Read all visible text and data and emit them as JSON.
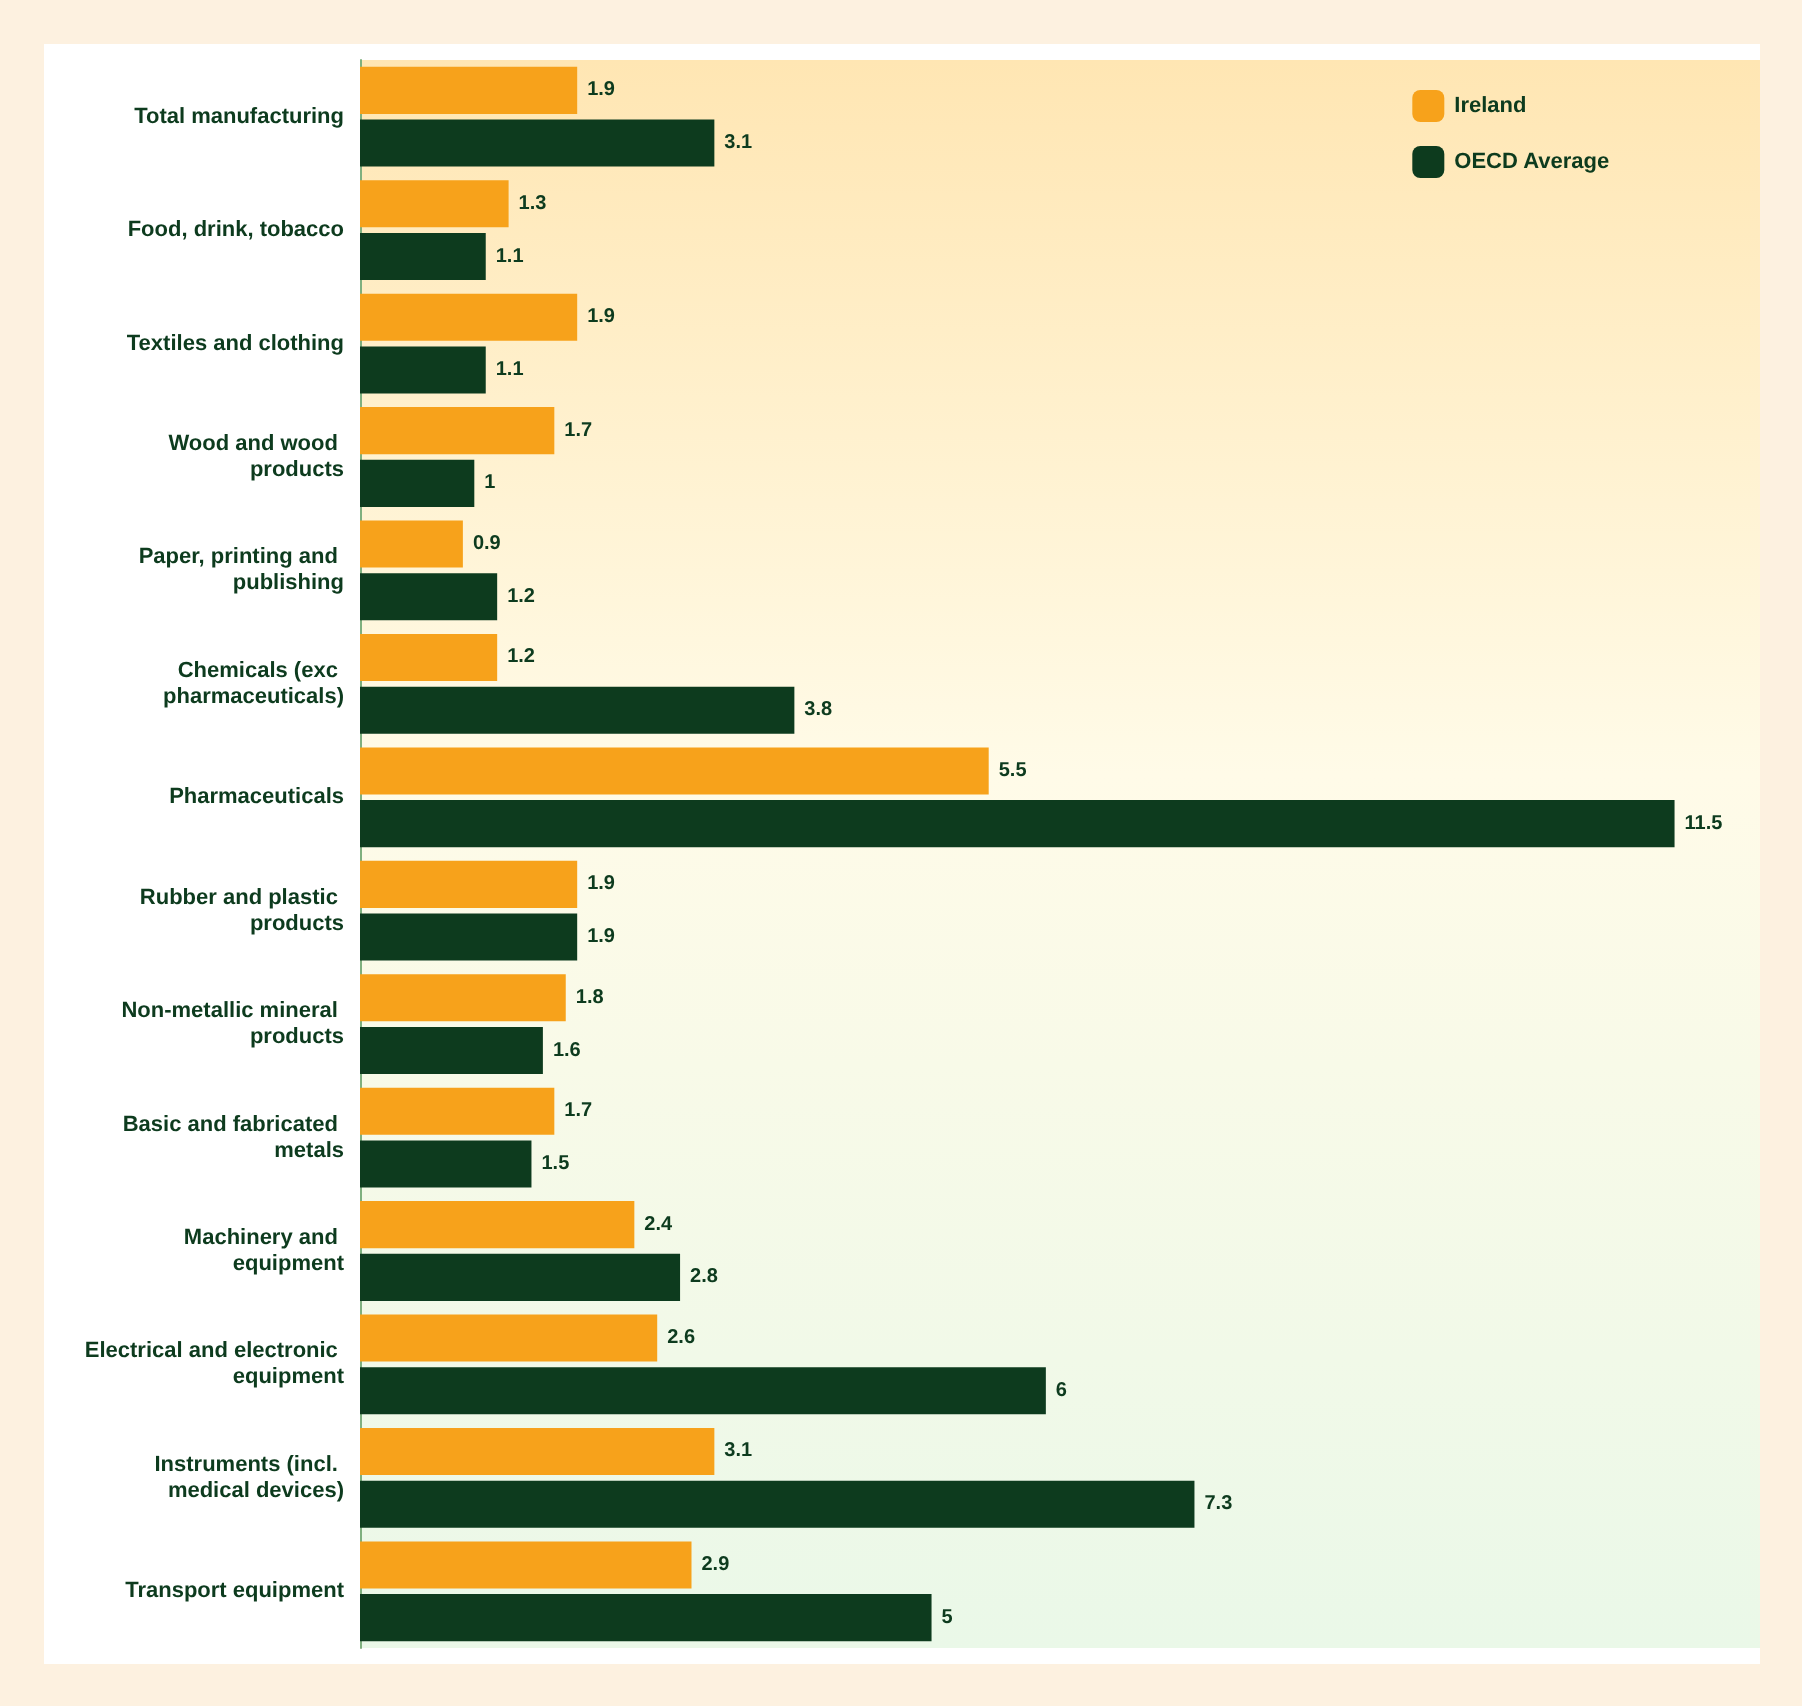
{
  "chart_data": {
    "type": "bar",
    "orientation": "horizontal",
    "categories": [
      "Total manufacturing",
      "Food, drink, tobacco",
      "Textiles and clothing",
      "Wood and wood products",
      "Paper, printing and publishing",
      "Chemicals (exc pharmaceuticals)",
      "Pharmaceuticals",
      "Rubber and plastic products",
      "Non-metallic mineral products",
      "Basic and fabricated metals",
      "Machinery and equipment",
      "Electrical and electronic equipment",
      "Instruments (incl. medical devices)",
      "Transport equipment"
    ],
    "series": [
      {
        "name": "Ireland",
        "color": "#f7a21b",
        "values": [
          1.9,
          1.3,
          1.9,
          1.7,
          0.9,
          1.2,
          5.5,
          1.9,
          1.8,
          1.7,
          2.4,
          2.6,
          3.1,
          2.9
        ]
      },
      {
        "name": "OECD Average",
        "color": "#0d3b1e",
        "values": [
          3.1,
          1.1,
          1.1,
          1.0,
          1.2,
          3.8,
          11.5,
          1.9,
          1.6,
          1.5,
          2.8,
          6.0,
          7.3,
          5.0
        ]
      }
    ],
    "data_labels": true,
    "legend": "top right",
    "grid": false
  }
}
